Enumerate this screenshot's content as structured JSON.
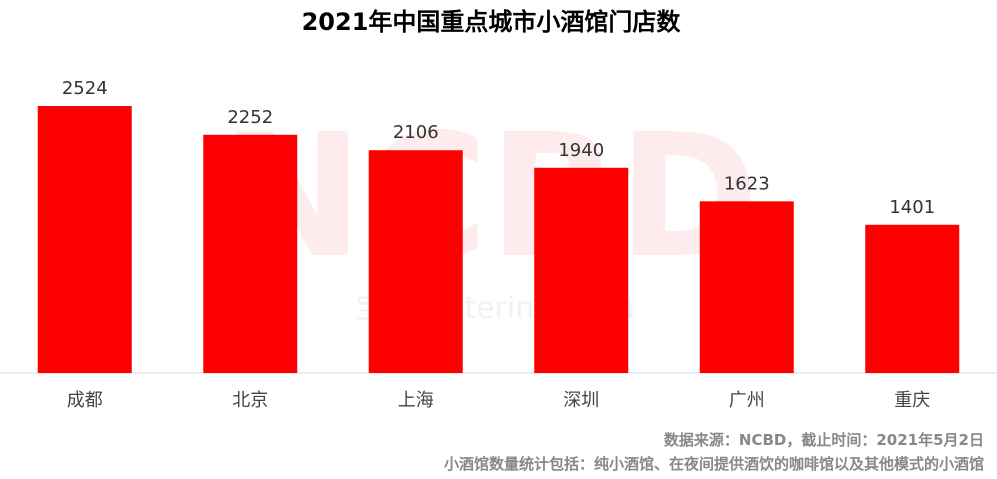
{
  "chart_data": {
    "type": "bar",
    "title": "2021年中国重点城市小酒馆门店数",
    "categories": [
      "成都",
      "北京",
      "上海",
      "深圳",
      "广州",
      "重庆"
    ],
    "values": [
      2524,
      2252,
      2106,
      1940,
      1623,
      1401
    ],
    "ylim": [
      0,
      2524
    ],
    "grid": false,
    "show_y_axis": false,
    "bar_color": "#ff0000"
  },
  "watermark": {
    "logo": "NCBD",
    "text": "宝典   Catering Data"
  },
  "footer": {
    "source": "数据来源：NCBD，截止时间：2021年5月2日",
    "note": "小酒馆数量统计包括：纯小酒馆、在夜间提供酒饮的咖啡馆以及其他模式的小酒馆"
  }
}
